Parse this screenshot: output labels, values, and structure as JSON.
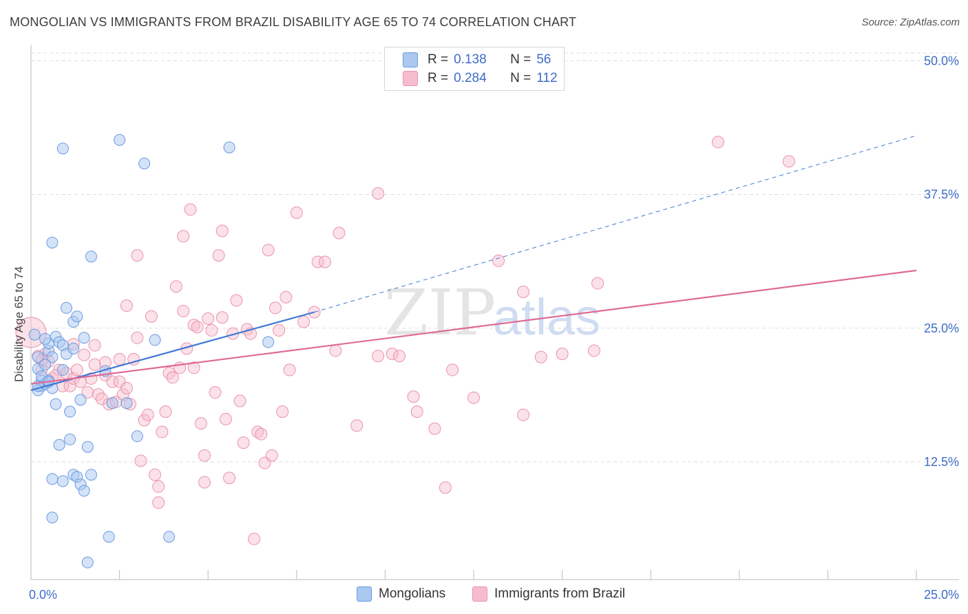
{
  "title": "MONGOLIAN VS IMMIGRANTS FROM BRAZIL DISABILITY AGE 65 TO 74 CORRELATION CHART",
  "source": "Source: ZipAtlas.com",
  "colors": {
    "blue_fill": "#aac8f0",
    "blue_stroke": "#6a9ae0",
    "blue_line": "#3f79d4",
    "pink_fill": "#f6bccd",
    "pink_stroke": "#ea93ad",
    "pink_line": "#e06a95",
    "axis_text": "#3d6dc9",
    "grid": "#dddddd"
  },
  "legend": {
    "mongolians": {
      "r_label": "R =",
      "r_value": "0.138",
      "n_label": "N =",
      "n_value": "56"
    },
    "brazil": {
      "r_label": "R =",
      "r_value": "0.284",
      "n_label": "N =",
      "n_value": "112"
    }
  },
  "bottom_legend": {
    "mongolians": "Mongolians",
    "brazil": "Immigrants from Brazil"
  },
  "watermark": {
    "zip": "ZIP",
    "atlas": "atlas"
  },
  "chart_data": {
    "type": "scatter",
    "title": "MONGOLIAN VS IMMIGRANTS FROM BRAZIL DISABILITY AGE 65 TO 74 CORRELATION CHART",
    "xlabel": "",
    "ylabel": "Disability Age 65 to 74",
    "xlim": [
      0,
      25
    ],
    "ylim": [
      1.5,
      51.5
    ],
    "x_tick_labels": [
      {
        "value": 0,
        "label": "0.0%"
      },
      {
        "value": 25,
        "label": "25.0%"
      }
    ],
    "y_tick_labels": [
      {
        "value": 12.5,
        "label": "12.5%"
      },
      {
        "value": 25,
        "label": "25.0%"
      },
      {
        "value": 37.5,
        "label": "37.5%"
      },
      {
        "value": 50,
        "label": "50.0%"
      }
    ],
    "x_minor_ticks": [
      2.5,
      5,
      7.5,
      10,
      12.5,
      15,
      17.5,
      20,
      22.5
    ],
    "series": [
      {
        "name": "Mongolians",
        "color": "#aac8f0",
        "trend": {
          "x": [
            0,
            8
          ],
          "y": [
            19.2,
            26.5
          ],
          "dashed_to": [
            25,
            43.0
          ]
        },
        "points": [
          [
            0.1,
            24.4
          ],
          [
            0.2,
            22.3
          ],
          [
            0.2,
            21.2
          ],
          [
            0.3,
            20.1
          ],
          [
            0.3,
            19.6
          ],
          [
            0.2,
            19.2
          ],
          [
            0.4,
            19.8
          ],
          [
            0.5,
            22.9
          ],
          [
            0.5,
            23.6
          ],
          [
            0.6,
            22.3
          ],
          [
            0.6,
            19.4
          ],
          [
            0.5,
            20.1
          ],
          [
            0.4,
            21.6
          ],
          [
            0.7,
            24.2
          ],
          [
            0.8,
            23.7
          ],
          [
            0.7,
            17.9
          ],
          [
            0.8,
            14.1
          ],
          [
            0.9,
            23.4
          ],
          [
            0.9,
            21.1
          ],
          [
            1.0,
            26.9
          ],
          [
            1.1,
            17.2
          ],
          [
            1.0,
            22.6
          ],
          [
            1.2,
            25.6
          ],
          [
            1.2,
            23.1
          ],
          [
            1.1,
            14.6
          ],
          [
            1.2,
            11.3
          ],
          [
            1.3,
            11.1
          ],
          [
            1.3,
            26.1
          ],
          [
            1.4,
            10.4
          ],
          [
            1.5,
            9.8
          ],
          [
            1.4,
            18.3
          ],
          [
            1.5,
            24.1
          ],
          [
            1.6,
            13.9
          ],
          [
            1.7,
            31.7
          ],
          [
            1.7,
            11.3
          ],
          [
            0.6,
            10.9
          ],
          [
            0.9,
            10.7
          ],
          [
            0.6,
            7.3
          ],
          [
            0.9,
            41.8
          ],
          [
            0.6,
            33.0
          ],
          [
            1.6,
            3.1
          ],
          [
            2.1,
            21.0
          ],
          [
            2.2,
            5.5
          ],
          [
            2.3,
            18.0
          ],
          [
            2.5,
            42.6
          ],
          [
            2.7,
            18.0
          ],
          [
            3.0,
            14.9
          ],
          [
            3.2,
            40.4
          ],
          [
            3.5,
            23.9
          ],
          [
            3.9,
            5.5
          ],
          [
            5.6,
            41.9
          ],
          [
            6.7,
            23.7
          ],
          [
            0.2,
            19.6
          ],
          [
            0.3,
            20.5
          ],
          [
            0.5,
            20.0
          ],
          [
            0.4,
            24.0
          ]
        ]
      },
      {
        "name": "Immigrants from Brazil",
        "color": "#f6bccd",
        "trend": {
          "x": [
            0,
            25
          ],
          "y": [
            19.8,
            30.4
          ]
        },
        "points": [
          [
            0.0,
            24.6
          ],
          [
            0.2,
            22.4
          ],
          [
            0.3,
            21.1
          ],
          [
            0.4,
            22.6
          ],
          [
            0.5,
            21.9
          ],
          [
            0.6,
            20.3
          ],
          [
            0.8,
            21.1
          ],
          [
            0.9,
            19.6
          ],
          [
            1.0,
            20.8
          ],
          [
            1.1,
            19.6
          ],
          [
            1.2,
            20.3
          ],
          [
            1.3,
            21.1
          ],
          [
            1.4,
            20.0
          ],
          [
            1.5,
            22.5
          ],
          [
            1.6,
            19.0
          ],
          [
            1.7,
            20.3
          ],
          [
            1.8,
            21.6
          ],
          [
            1.8,
            23.4
          ],
          [
            1.9,
            18.8
          ],
          [
            2.0,
            18.4
          ],
          [
            2.1,
            20.6
          ],
          [
            2.1,
            21.8
          ],
          [
            2.2,
            17.9
          ],
          [
            2.3,
            20.0
          ],
          [
            2.4,
            18.1
          ],
          [
            2.5,
            20.0
          ],
          [
            2.5,
            22.1
          ],
          [
            2.6,
            18.8
          ],
          [
            2.7,
            27.1
          ],
          [
            2.7,
            19.4
          ],
          [
            2.8,
            17.9
          ],
          [
            2.9,
            22.1
          ],
          [
            3.0,
            24.1
          ],
          [
            3.0,
            31.8
          ],
          [
            3.1,
            12.6
          ],
          [
            3.2,
            16.4
          ],
          [
            3.3,
            16.9
          ],
          [
            3.4,
            26.1
          ],
          [
            3.5,
            11.3
          ],
          [
            3.6,
            8.7
          ],
          [
            3.6,
            10.2
          ],
          [
            3.7,
            15.3
          ],
          [
            3.8,
            17.2
          ],
          [
            3.9,
            20.8
          ],
          [
            4.0,
            20.4
          ],
          [
            4.1,
            28.9
          ],
          [
            4.2,
            21.3
          ],
          [
            4.3,
            26.6
          ],
          [
            4.3,
            33.6
          ],
          [
            4.4,
            23.1
          ],
          [
            4.5,
            36.1
          ],
          [
            4.6,
            25.3
          ],
          [
            4.6,
            21.3
          ],
          [
            4.7,
            25.1
          ],
          [
            4.8,
            16.1
          ],
          [
            4.9,
            13.1
          ],
          [
            4.9,
            10.6
          ],
          [
            5.0,
            25.9
          ],
          [
            5.1,
            24.8
          ],
          [
            5.2,
            19.0
          ],
          [
            5.3,
            31.8
          ],
          [
            5.4,
            34.1
          ],
          [
            5.4,
            26.0
          ],
          [
            5.5,
            16.5
          ],
          [
            5.6,
            11.0
          ],
          [
            5.7,
            24.5
          ],
          [
            5.8,
            27.6
          ],
          [
            5.9,
            18.2
          ],
          [
            6.0,
            14.3
          ],
          [
            6.1,
            24.9
          ],
          [
            6.2,
            24.5
          ],
          [
            6.3,
            5.3
          ],
          [
            6.4,
            15.3
          ],
          [
            6.5,
            15.1
          ],
          [
            6.6,
            12.4
          ],
          [
            6.7,
            32.3
          ],
          [
            6.8,
            13.1
          ],
          [
            6.9,
            26.9
          ],
          [
            7.0,
            24.8
          ],
          [
            7.1,
            17.2
          ],
          [
            7.2,
            27.9
          ],
          [
            7.3,
            21.1
          ],
          [
            7.5,
            35.8
          ],
          [
            7.7,
            25.6
          ],
          [
            8.0,
            26.5
          ],
          [
            8.1,
            31.2
          ],
          [
            8.3,
            31.2
          ],
          [
            8.6,
            22.9
          ],
          [
            8.7,
            33.9
          ],
          [
            9.2,
            15.9
          ],
          [
            9.8,
            37.6
          ],
          [
            9.8,
            22.4
          ],
          [
            10.2,
            22.6
          ],
          [
            10.4,
            22.4
          ],
          [
            10.8,
            18.6
          ],
          [
            10.9,
            17.2
          ],
          [
            11.4,
            15.6
          ],
          [
            11.9,
            21.1
          ],
          [
            11.7,
            10.1
          ],
          [
            12.5,
            18.5
          ],
          [
            13.2,
            31.3
          ],
          [
            13.9,
            28.4
          ],
          [
            13.9,
            16.9
          ],
          [
            14.4,
            22.3
          ],
          [
            15.0,
            22.6
          ],
          [
            15.9,
            22.9
          ],
          [
            16.0,
            29.2
          ],
          [
            19.4,
            42.4
          ],
          [
            21.4,
            40.6
          ],
          [
            0.3,
            22.0
          ],
          [
            0.7,
            20.6
          ],
          [
            1.2,
            23.5
          ]
        ]
      }
    ]
  }
}
